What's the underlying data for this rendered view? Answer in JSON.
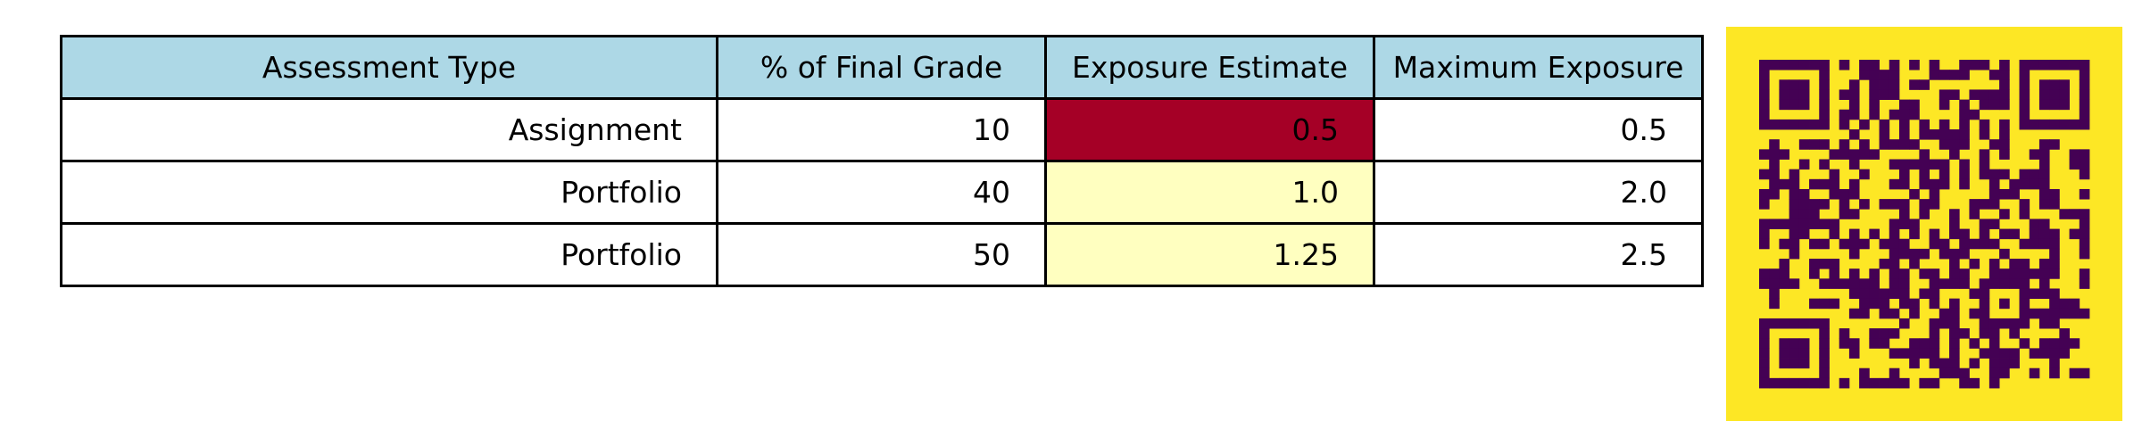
{
  "colors": {
    "header_bg": "#add8e6",
    "cell_bg": "#ffffff",
    "estimate_high": "#a50026",
    "estimate_low": "#ffffc0",
    "qr_background": "#fde725",
    "qr_modules": "#440154"
  },
  "chart_data": [
    {
      "type": "table",
      "columns": [
        "Assessment Type",
        "% of Final Grade",
        "Exposure Estimate",
        "Maximum Exposure"
      ],
      "rows": [
        [
          "Assignment",
          "10",
          "0.5",
          "0.5"
        ],
        [
          "Portfolio",
          "40",
          "1.0",
          "2.0"
        ],
        [
          "Portfolio",
          "50",
          "1.25",
          "2.5"
        ]
      ],
      "exposure_estimate_colors": [
        "#a50026",
        "#ffffc0",
        "#ffffc0"
      ]
    },
    {
      "type": "heatmap",
      "modules": 33,
      "colors": [
        "#fde725",
        "#440154"
      ]
    }
  ]
}
